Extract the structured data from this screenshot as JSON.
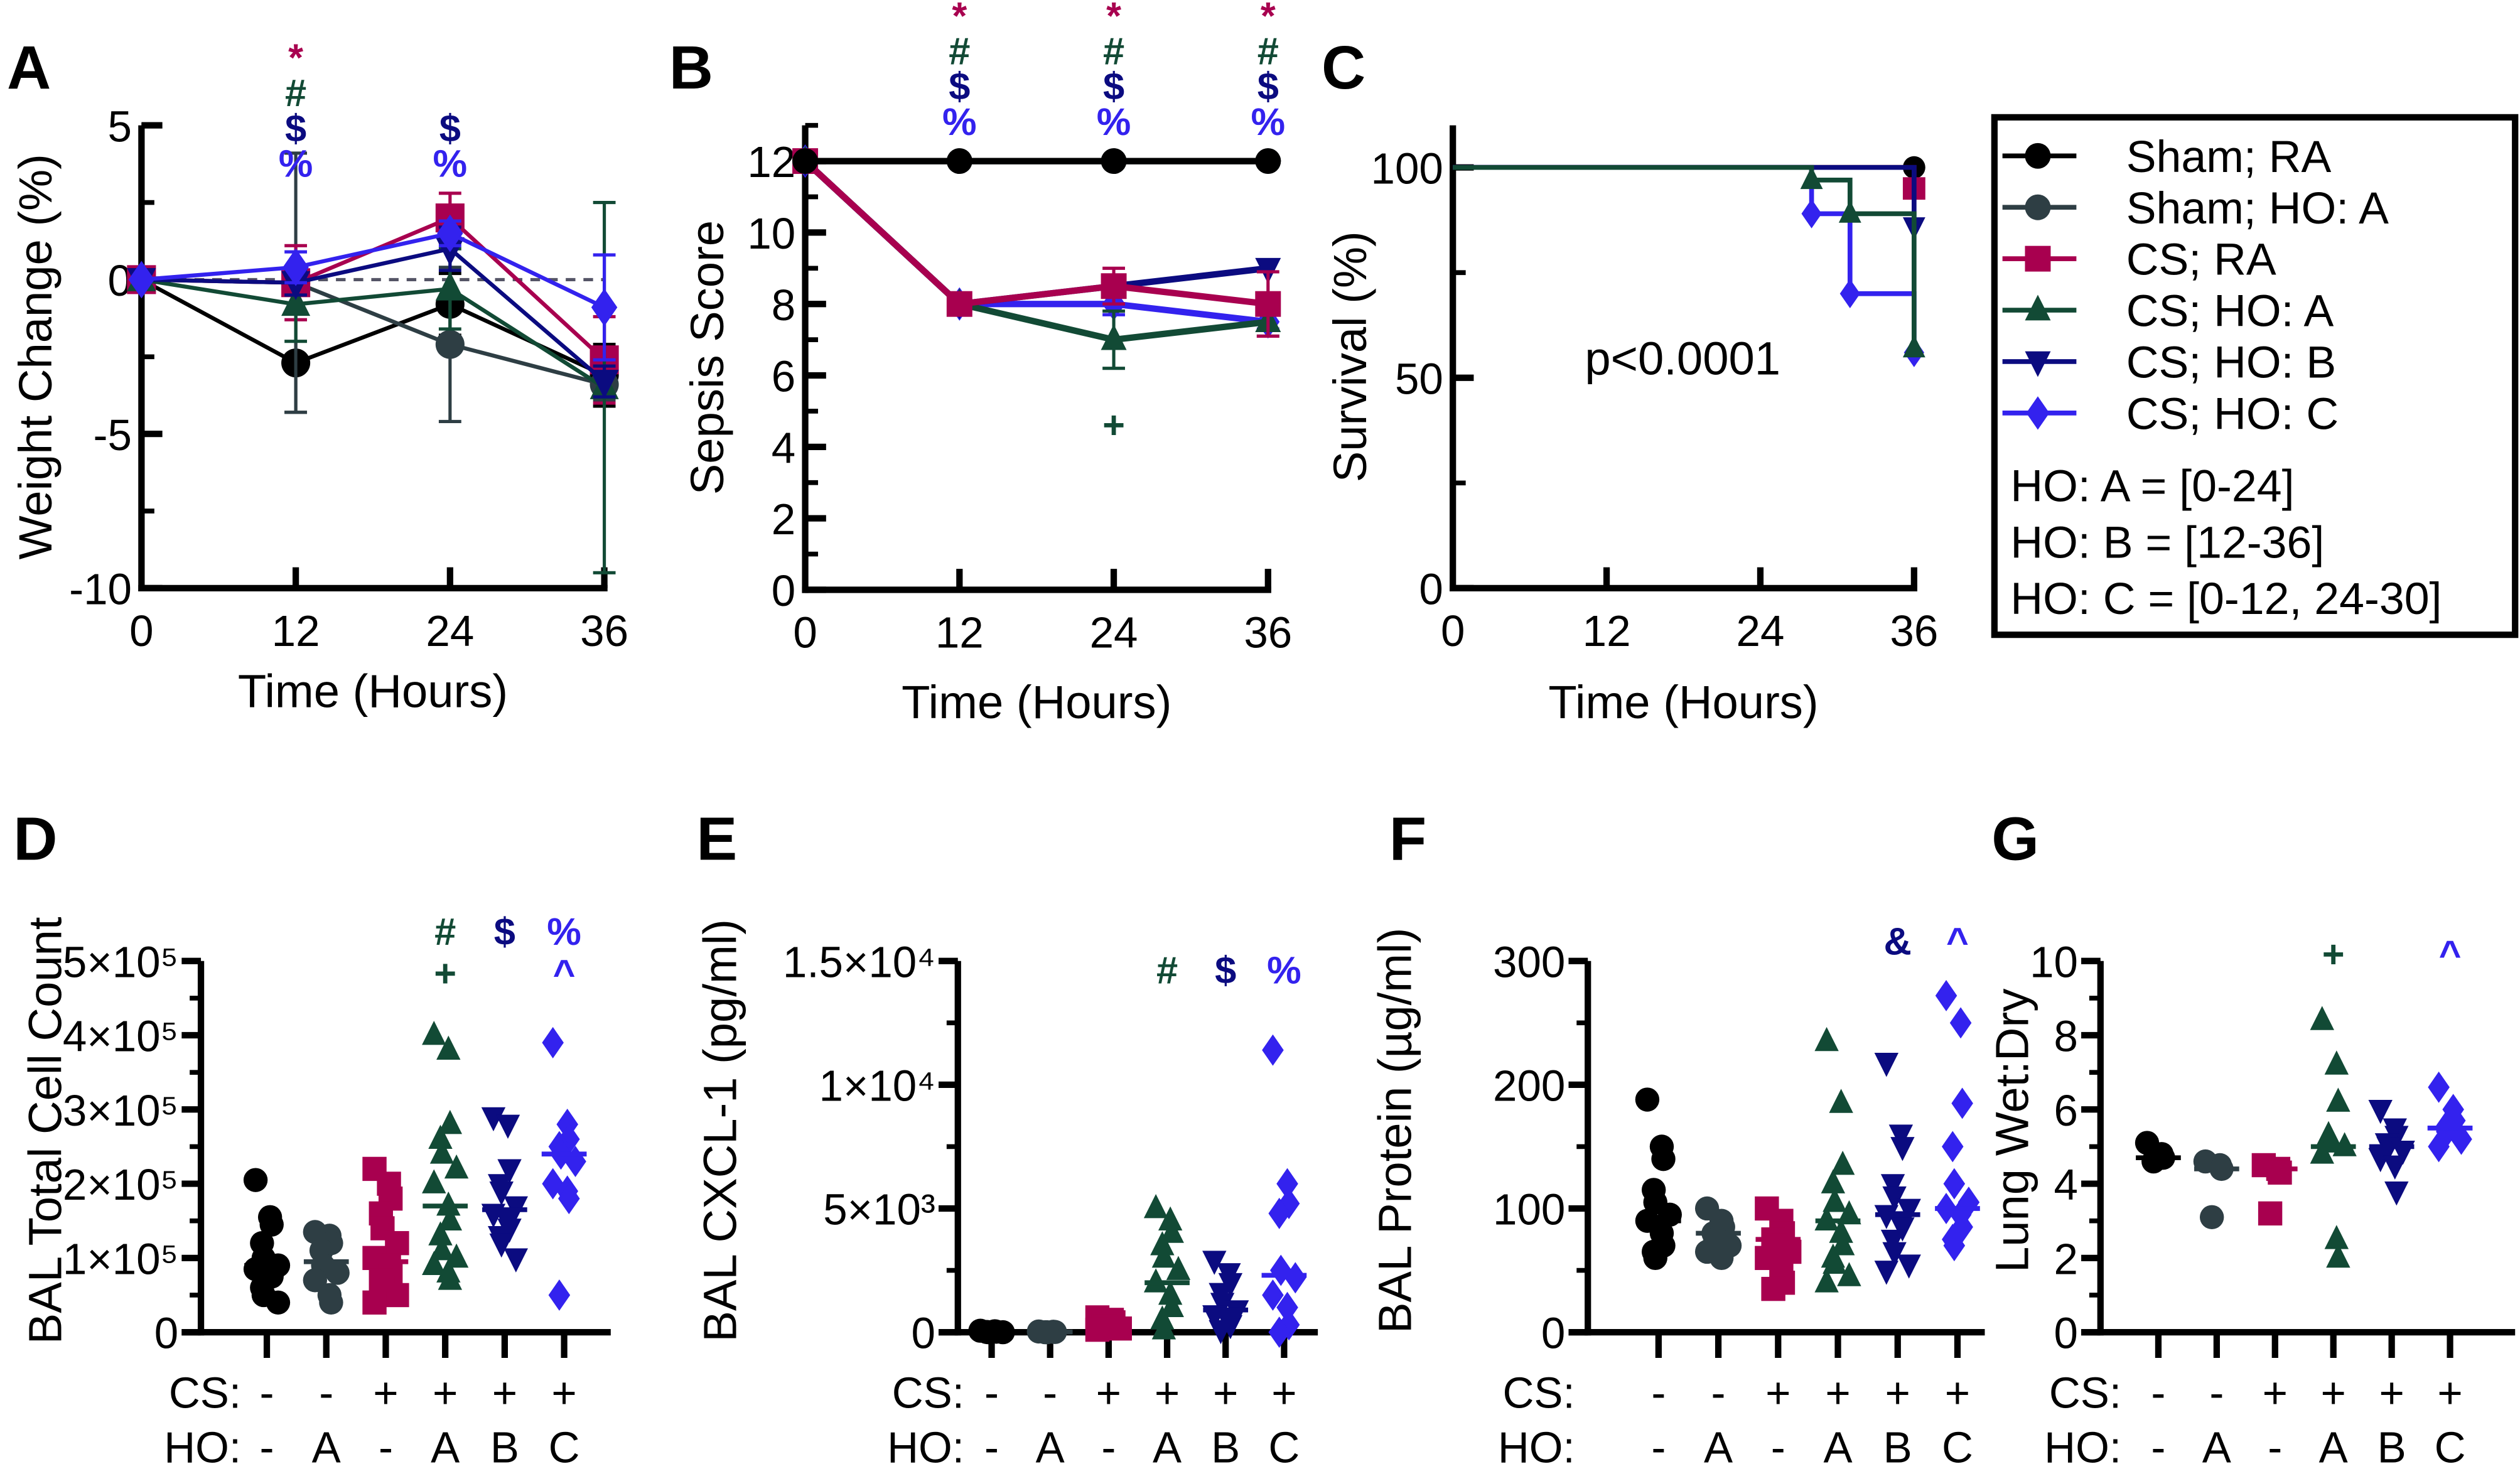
{
  "colors": {
    "sham_ra": "#000000",
    "sham_ho_a": "#2e3e44",
    "cs_ra": "#a8004f",
    "cs_ho_a": "#124a35",
    "cs_ho_b": "#0b0b80",
    "cs_ho_c": "#3322ee"
  },
  "legend": {
    "entries": [
      {
        "key": "sham_ra",
        "label": "Sham; RA",
        "marker": "circle"
      },
      {
        "key": "sham_ho_a",
        "label": "Sham; HO: A",
        "marker": "circle"
      },
      {
        "key": "cs_ra",
        "label": "CS; RA",
        "marker": "square"
      },
      {
        "key": "cs_ho_a",
        "label": "CS; HO: A",
        "marker": "triangle"
      },
      {
        "key": "cs_ho_b",
        "label": "CS; HO: B",
        "marker": "triangle-down"
      },
      {
        "key": "cs_ho_c",
        "label": "CS; HO: C",
        "marker": "diamond"
      }
    ],
    "notes": [
      "HO: A = [0-24]",
      "HO: B = [12-36]",
      "HO: C = [0-12, 24-30]"
    ],
    "placement": "right"
  },
  "chart_data": [
    {
      "panel": "A",
      "type": "line",
      "xlabel": "Time (Hours)",
      "ylabel": "Weight Change (%)",
      "xlim": [
        0,
        36
      ],
      "ylim": [
        -10,
        5
      ],
      "xticks": [
        "0",
        "12",
        "24",
        "36"
      ],
      "yticks": [
        "5",
        "0",
        "-5",
        "-10"
      ],
      "x": [
        0,
        12,
        24,
        36
      ],
      "reference_line": 0,
      "series": [
        {
          "key": "sham_ra",
          "values": [
            0,
            -2.7,
            -0.8,
            -3.1
          ],
          "err": [
            0,
            1.6,
            1.0,
            1.0
          ]
        },
        {
          "key": "sham_ho_a",
          "values": [
            0,
            -0.1,
            -2.1,
            -3.4
          ],
          "err": [
            0,
            4.2,
            2.5,
            0.5
          ]
        },
        {
          "key": "cs_ra",
          "values": [
            0,
            -0.1,
            2.0,
            -2.6
          ],
          "err": [
            0,
            1.2,
            0.8,
            1.4
          ]
        },
        {
          "key": "cs_ho_a",
          "values": [
            0,
            -0.8,
            -0.3,
            -3.5
          ],
          "err": [
            0,
            1.2,
            1.3,
            6.0
          ]
        },
        {
          "key": "cs_ho_b",
          "values": [
            0,
            -0.1,
            1.0,
            -3.3
          ],
          "err": [
            0,
            0.4,
            0.7,
            0.5
          ]
        },
        {
          "key": "cs_ho_c",
          "values": [
            0,
            0.4,
            1.5,
            -0.9
          ],
          "err": [
            0,
            0.5,
            0.4,
            1.7
          ]
        }
      ],
      "annotations": [
        {
          "x": 12,
          "symbols": [
            {
              "s": "*",
              "key": "cs_ra"
            },
            {
              "s": "#",
              "key": "cs_ho_a"
            },
            {
              "s": "$",
              "key": "cs_ho_b"
            },
            {
              "s": "%",
              "key": "cs_ho_c"
            }
          ]
        },
        {
          "x": 24,
          "symbols": [
            {
              "s": "$",
              "key": "cs_ho_b"
            },
            {
              "s": "%",
              "key": "cs_ho_c"
            }
          ]
        }
      ]
    },
    {
      "panel": "B",
      "type": "line",
      "xlabel": "Time (Hours)",
      "ylabel": "Sepsis Score",
      "xlim": [
        0,
        36
      ],
      "ylim": [
        0,
        13
      ],
      "xticks": [
        "0",
        "12",
        "24",
        "36"
      ],
      "yticks": [
        "0",
        "2",
        "4",
        "6",
        "8",
        "10",
        "12"
      ],
      "x": [
        0,
        12,
        24,
        36
      ],
      "series": [
        {
          "key": "cs_ho_c",
          "values": [
            12,
            8,
            8,
            7.5
          ],
          "err": [
            0,
            0,
            0.3,
            0.2
          ]
        },
        {
          "key": "cs_ho_b",
          "values": [
            12,
            8,
            8.5,
            9
          ],
          "err": [
            0,
            0,
            0.3,
            0
          ]
        },
        {
          "key": "cs_ho_a",
          "values": [
            12,
            8,
            7,
            7.5
          ],
          "err": [
            0,
            0,
            0.8,
            0.4
          ]
        },
        {
          "key": "cs_ra",
          "values": [
            12,
            8,
            8.5,
            8
          ],
          "err": [
            0,
            0,
            0.5,
            0.9
          ]
        },
        {
          "key": "sham_ho_a",
          "values": [
            12,
            12,
            12,
            12
          ],
          "err": [
            0,
            0,
            0,
            0
          ]
        },
        {
          "key": "sham_ra",
          "values": [
            12,
            12,
            12,
            12
          ],
          "err": [
            0,
            0,
            0,
            0
          ]
        }
      ],
      "annotations": [
        {
          "x": 12,
          "symbols": [
            {
              "s": "*",
              "key": "cs_ra"
            },
            {
              "s": "#",
              "key": "cs_ho_a"
            },
            {
              "s": "$",
              "key": "cs_ho_b"
            },
            {
              "s": "%",
              "key": "cs_ho_c"
            }
          ]
        },
        {
          "x": 24,
          "symbols": [
            {
              "s": "*",
              "key": "cs_ra"
            },
            {
              "s": "#",
              "key": "cs_ho_a"
            },
            {
              "s": "$",
              "key": "cs_ho_b"
            },
            {
              "s": "%",
              "key": "cs_ho_c"
            }
          ]
        },
        {
          "x": 36,
          "symbols": [
            {
              "s": "*",
              "key": "cs_ra"
            },
            {
              "s": "#",
              "key": "cs_ho_a"
            },
            {
              "s": "$",
              "key": "cs_ho_b"
            },
            {
              "s": "%",
              "key": "cs_ho_c"
            }
          ]
        }
      ],
      "point_annotations": [
        {
          "x": 24,
          "y": 4.6,
          "s": "+",
          "key": "cs_ho_a"
        }
      ]
    },
    {
      "panel": "C",
      "type": "line",
      "subtype": "survival-step",
      "xlabel": "Time (Hours)",
      "ylabel": "Survival (%)",
      "xlim": [
        0,
        36
      ],
      "ylim": [
        0,
        110
      ],
      "xticks": [
        "0",
        "12",
        "24",
        "36"
      ],
      "yticks": [
        "0",
        "50",
        "100"
      ],
      "stat_text": "p<0.0001",
      "series": [
        {
          "key": "sham_ra",
          "steps": [
            [
              0,
              100
            ],
            [
              36,
              100
            ]
          ]
        },
        {
          "key": "cs_ra",
          "steps": [
            [
              0,
              100
            ],
            [
              36,
              95
            ]
          ]
        },
        {
          "key": "cs_ho_b",
          "steps": [
            [
              0,
              100
            ],
            [
              36,
              86
            ]
          ]
        },
        {
          "key": "cs_ho_c",
          "steps": [
            [
              0,
              100
            ],
            [
              28,
              89
            ],
            [
              31,
              70
            ],
            [
              36,
              56
            ]
          ]
        },
        {
          "key": "cs_ho_a",
          "steps": [
            [
              0,
              100
            ],
            [
              28,
              97
            ],
            [
              31,
              89
            ],
            [
              36,
              57
            ]
          ]
        }
      ]
    },
    {
      "panel": "D",
      "type": "scatter",
      "ylabel": "BAL Total Cell Count",
      "ylim": [
        0,
        500000
      ],
      "yticks": [
        {
          "v": 0,
          "t": "0"
        },
        {
          "v": 100000,
          "t": "1×10⁵"
        },
        {
          "v": 200000,
          "t": "2×10⁵"
        },
        {
          "v": 300000,
          "t": "3×10⁵"
        },
        {
          "v": 400000,
          "t": "4×10⁵"
        },
        {
          "v": 500000,
          "t": "5×10⁵"
        }
      ],
      "row_labels": [
        "CS:",
        "HO:"
      ],
      "groups": [
        {
          "key": "sham_ra",
          "cs": "-",
          "ho": "-",
          "median": 90000,
          "values": [
            205000,
            155000,
            145000,
            120000,
            100000,
            90000,
            85000,
            80000,
            75000,
            60000,
            50000,
            40000
          ],
          "ann": []
        },
        {
          "key": "sham_ho_a",
          "cs": "-",
          "ho": "A",
          "median": 95000,
          "values": [
            135000,
            130000,
            120000,
            110000,
            90000,
            80000,
            70000,
            50000,
            40000
          ],
          "ann": []
        },
        {
          "key": "cs_ra",
          "cs": "+",
          "ho": "-",
          "median": 95000,
          "values": [
            220000,
            200000,
            180000,
            160000,
            140000,
            120000,
            100000,
            90000,
            80000,
            70000,
            60000,
            50000,
            40000
          ],
          "ann": []
        },
        {
          "key": "cs_ho_a",
          "cs": "+",
          "ho": "A",
          "median": 170000,
          "values": [
            400000,
            380000,
            280000,
            260000,
            240000,
            220000,
            200000,
            170000,
            150000,
            130000,
            110000,
            100000,
            90000,
            80000,
            70000
          ],
          "ann": [
            "#",
            "+"
          ]
        },
        {
          "key": "cs_ho_b",
          "cs": "+",
          "ho": "B",
          "median": 165000,
          "values": [
            290000,
            280000,
            220000,
            200000,
            190000,
            170000,
            160000,
            150000,
            140000,
            130000,
            120000,
            100000
          ],
          "ann": [
            "$"
          ]
        },
        {
          "key": "cs_ho_c",
          "cs": "+",
          "ho": "C",
          "median": 240000,
          "values": [
            390000,
            280000,
            260000,
            250000,
            240000,
            230000,
            200000,
            190000,
            180000,
            50000
          ],
          "ann": [
            "%",
            "^"
          ]
        }
      ]
    },
    {
      "panel": "E",
      "type": "scatter",
      "ylabel": "BAL CXCL-1 (pg/ml)",
      "ylim": [
        0,
        15000
      ],
      "yticks": [
        {
          "v": 0,
          "t": "0"
        },
        {
          "v": 5000,
          "t": "5×10³"
        },
        {
          "v": 10000,
          "t": "1×10⁴"
        },
        {
          "v": 15000,
          "t": "1.5×10⁴"
        }
      ],
      "row_labels": [
        "CS:",
        "HO:"
      ],
      "groups": [
        {
          "key": "sham_ra",
          "cs": "-",
          "ho": "-",
          "median": 20,
          "values": [
            60,
            40,
            20,
            10,
            0,
            0
          ],
          "ann": []
        },
        {
          "key": "sham_ho_a",
          "cs": "-",
          "ho": "A",
          "median": 10,
          "values": [
            30,
            20,
            10,
            0,
            0
          ],
          "ann": []
        },
        {
          "key": "cs_ra",
          "cs": "+",
          "ho": "-",
          "median": 300,
          "values": [
            600,
            500,
            400,
            300,
            250,
            150,
            100
          ],
          "ann": []
        },
        {
          "key": "cs_ho_a",
          "cs": "+",
          "ho": "A",
          "median": 2000,
          "values": [
            5000,
            4500,
            4000,
            3500,
            3000,
            2500,
            2000,
            1500,
            1000,
            500,
            100
          ],
          "ann": [
            "#"
          ]
        },
        {
          "key": "cs_ho_b",
          "cs": "+",
          "ho": "B",
          "median": 900,
          "values": [
            2900,
            2400,
            2000,
            1600,
            1200,
            900,
            700,
            500,
            300,
            100
          ],
          "ann": [
            "$"
          ]
        },
        {
          "key": "cs_ho_c",
          "cs": "+",
          "ho": "C",
          "median": 2300,
          "values": [
            11400,
            6000,
            5200,
            4800,
            2500,
            2200,
            1500,
            1000,
            300,
            0
          ],
          "ann": [
            "%"
          ]
        }
      ]
    },
    {
      "panel": "F",
      "type": "scatter",
      "ylabel": "BAL Protein (µg/ml)",
      "ylim": [
        0,
        300
      ],
      "yticks": [
        {
          "v": 0,
          "t": "0"
        },
        {
          "v": 100,
          "t": "100"
        },
        {
          "v": 200,
          "t": "200"
        },
        {
          "v": 300,
          "t": "300"
        }
      ],
      "row_labels": [
        "CS:",
        "HO:"
      ],
      "groups": [
        {
          "key": "sham_ra",
          "cs": "-",
          "ho": "-",
          "median": 90,
          "values": [
            188,
            150,
            140,
            115,
            105,
            95,
            90,
            80,
            70,
            65,
            60
          ],
          "ann": []
        },
        {
          "key": "sham_ho_a",
          "cs": "-",
          "ho": "A",
          "median": 80,
          "values": [
            100,
            90,
            85,
            80,
            75,
            70,
            65,
            60
          ],
          "ann": []
        },
        {
          "key": "cs_ra",
          "cs": "+",
          "ho": "-",
          "median": 75,
          "values": [
            100,
            90,
            80,
            75,
            70,
            65,
            60,
            50,
            40,
            35
          ],
          "ann": []
        },
        {
          "key": "cs_ho_a",
          "cs": "+",
          "ho": "A",
          "median": 90,
          "values": [
            235,
            185,
            135,
            120,
            105,
            95,
            90,
            80,
            70,
            60,
            55,
            45,
            40
          ],
          "ann": []
        },
        {
          "key": "cs_ho_b",
          "cs": "+",
          "ho": "B",
          "median": 95,
          "values": [
            218,
            160,
            150,
            120,
            110,
            100,
            95,
            90,
            85,
            75,
            65,
            55,
            50
          ],
          "ann": [
            "&"
          ]
        },
        {
          "key": "cs_ho_c",
          "cs": "+",
          "ho": "C",
          "median": 100,
          "values": [
            272,
            250,
            185,
            150,
            120,
            105,
            100,
            95,
            85,
            75,
            70
          ],
          "ann": [
            "^"
          ]
        }
      ]
    },
    {
      "panel": "G",
      "type": "scatter",
      "ylabel": "Lung Wet:Dry",
      "ylim": [
        0,
        10
      ],
      "yticks": [
        {
          "v": 0,
          "t": "0"
        },
        {
          "v": 2,
          "t": "2"
        },
        {
          "v": 4,
          "t": "4"
        },
        {
          "v": 6,
          "t": "6"
        },
        {
          "v": 8,
          "t": "8"
        },
        {
          "v": 10,
          "t": "10"
        }
      ],
      "row_labels": [
        "CS:",
        "HO:"
      ],
      "groups": [
        {
          "key": "sham_ra",
          "cs": "-",
          "ho": "-",
          "median": 4.7,
          "values": [
            5.1,
            4.8,
            4.7,
            4.6
          ],
          "ann": []
        },
        {
          "key": "sham_ho_a",
          "cs": "-",
          "ho": "A",
          "median": 4.4,
          "values": [
            4.6,
            4.5,
            4.4,
            3.1
          ],
          "ann": []
        },
        {
          "key": "cs_ra",
          "cs": "+",
          "ho": "-",
          "median": 4.4,
          "values": [
            4.5,
            4.4,
            4.3,
            3.2
          ],
          "ann": []
        },
        {
          "key": "cs_ho_a",
          "cs": "+",
          "ho": "A",
          "median": 5.0,
          "values": [
            8.4,
            7.2,
            6.2,
            5.3,
            5.1,
            5.0,
            4.8,
            2.5,
            2.0
          ],
          "ann": [
            "+"
          ]
        },
        {
          "key": "cs_ho_b",
          "cs": "+",
          "ho": "B",
          "median": 5.0,
          "values": [
            6.0,
            5.5,
            5.3,
            5.1,
            5.0,
            4.9,
            4.7,
            4.5,
            3.8
          ],
          "ann": []
        },
        {
          "key": "cs_ho_c",
          "cs": "+",
          "ho": "C",
          "median": 5.5,
          "values": [
            6.6,
            6.0,
            5.7,
            5.5,
            5.4,
            5.2,
            5.0
          ],
          "ann": [
            "^"
          ]
        }
      ]
    }
  ]
}
